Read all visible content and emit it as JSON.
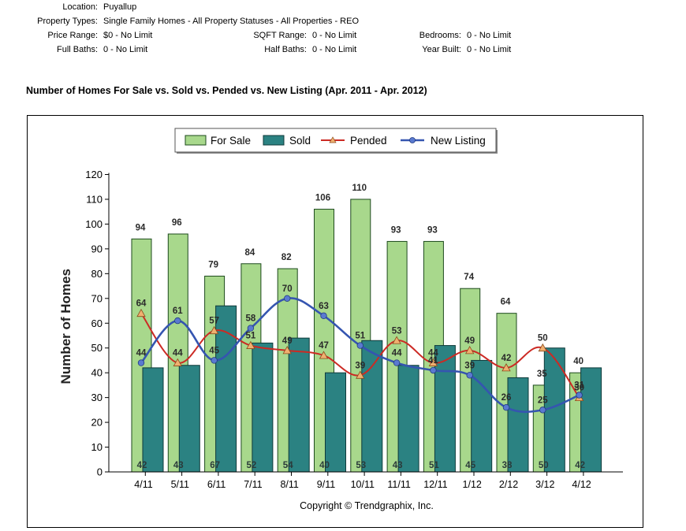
{
  "criteria": {
    "location": {
      "label": "Location:",
      "value": "Puyallup"
    },
    "property_types": {
      "label": "Property Types:",
      "value": "Single Family Homes - All Property Statuses - All Properties - REO"
    },
    "price_range": {
      "label": "Price Range:",
      "value": "$0 - No Limit"
    },
    "sqft_range": {
      "label": "SQFT Range:",
      "value": "0 - No Limit"
    },
    "bedrooms": {
      "label": "Bedrooms:",
      "value": "0 - No Limit"
    },
    "full_baths": {
      "label": "Full Baths:",
      "value": "0 - No Limit"
    },
    "half_baths": {
      "label": "Half Baths:",
      "value": "0 - No Limit"
    },
    "year_built": {
      "label": "Year Built:",
      "value": "0 - No Limit"
    }
  },
  "chart_title": "Number of Homes For Sale vs. Sold vs. Pended vs. New Listing (Apr. 2011 - Apr. 2012)",
  "colors": {
    "for_sale": "#a8d88c",
    "sold": "#2b8282",
    "pended": "#cc2a24",
    "new_listing": "#3555b0",
    "pended_marker": "#f0b070"
  },
  "chart_data": {
    "type": "bar",
    "title": "Number of Homes For Sale vs. Sold vs. Pended vs. New Listing (Apr. 2011 - Apr. 2012)",
    "categories": [
      "4/11",
      "5/11",
      "6/11",
      "7/11",
      "8/11",
      "9/11",
      "10/11",
      "11/11",
      "12/11",
      "1/12",
      "2/12",
      "3/12",
      "4/12"
    ],
    "series": [
      {
        "name": "For Sale",
        "kind": "bar",
        "values": [
          94,
          96,
          79,
          84,
          82,
          106,
          110,
          93,
          93,
          74,
          64,
          35,
          40
        ]
      },
      {
        "name": "Sold",
        "kind": "bar",
        "values": [
          42,
          43,
          67,
          52,
          54,
          40,
          53,
          43,
          51,
          45,
          38,
          50,
          42
        ]
      },
      {
        "name": "Pended",
        "kind": "line",
        "marker": "triangle",
        "values": [
          64,
          44,
          57,
          51,
          49,
          47,
          39,
          53,
          44,
          49,
          42,
          50,
          30
        ]
      },
      {
        "name": "New Listing",
        "kind": "line",
        "marker": "circle",
        "values": [
          44,
          61,
          45,
          58,
          70,
          63,
          51,
          44,
          41,
          39,
          26,
          25,
          31
        ]
      }
    ],
    "xlabel": "",
    "ylabel": "Number of Homes",
    "ylim": [
      0,
      120
    ],
    "yticks": [
      0,
      10,
      20,
      30,
      40,
      50,
      60,
      70,
      80,
      90,
      100,
      110,
      120
    ],
    "legend_position": "top-center",
    "grid": false,
    "footer": "Copyright © Trendgraphix, Inc."
  }
}
